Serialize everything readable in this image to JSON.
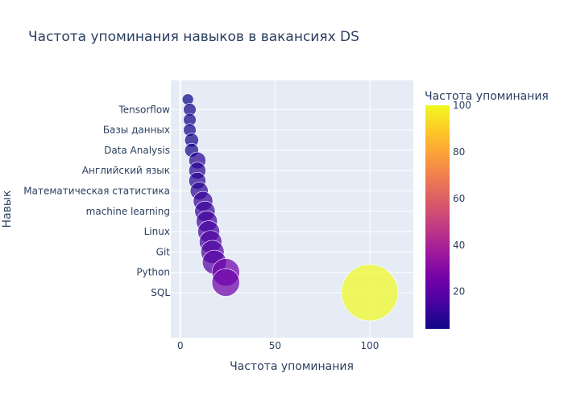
{
  "chart_data": {
    "type": "scatter",
    "title": "Частота упоминания навыков в вакансиях DS",
    "xlabel": "Частота упоминания",
    "ylabel": "Навык",
    "xlim": [
      -5,
      123
    ],
    "x_ticks": [
      0,
      50,
      100
    ],
    "y_tick_labels": [
      "Tensorflow",
      "Базы данных",
      "Data Analysis",
      "Английский язык",
      "Математическая статистика",
      "machine learning",
      "Linux",
      "Git",
      "Python",
      "SQL"
    ],
    "series": [
      {
        "points": [
          {
            "x": 4,
            "y": 19.5
          },
          {
            "x": 5,
            "y": 19.0
          },
          {
            "x": 5,
            "y": 18.5
          },
          {
            "x": 5,
            "y": 18.0
          },
          {
            "x": 6,
            "y": 17.5
          },
          {
            "x": 6,
            "y": 17.0
          },
          {
            "x": 9,
            "y": 16.5
          },
          {
            "x": 9,
            "y": 16.0
          },
          {
            "x": 9,
            "y": 15.5
          },
          {
            "x": 10,
            "y": 15.0
          },
          {
            "x": 12,
            "y": 14.5
          },
          {
            "x": 13,
            "y": 14.0
          },
          {
            "x": 14,
            "y": 13.5
          },
          {
            "x": 15,
            "y": 13.0
          },
          {
            "x": 16,
            "y": 12.5
          },
          {
            "x": 17,
            "y": 12.0
          },
          {
            "x": 18,
            "y": 11.5
          },
          {
            "x": 24,
            "y": 11.0
          },
          {
            "x": 24,
            "y": 10.5
          },
          {
            "x": 100,
            "y": 10.0
          }
        ]
      }
    ],
    "colorbar": {
      "title": "Частота упоминания",
      "range": [
        4,
        100
      ],
      "ticks": [
        20,
        40,
        60,
        80,
        100
      ]
    },
    "colorscale": [
      "#0d0887",
      "#46039f",
      "#7201a8",
      "#9c179e",
      "#bd3786",
      "#d8576b",
      "#ed7953",
      "#fb9f3a",
      "#fdca26",
      "#f0f921"
    ],
    "plot_background": "#e5ecf6",
    "grid": true,
    "legend": "none"
  }
}
